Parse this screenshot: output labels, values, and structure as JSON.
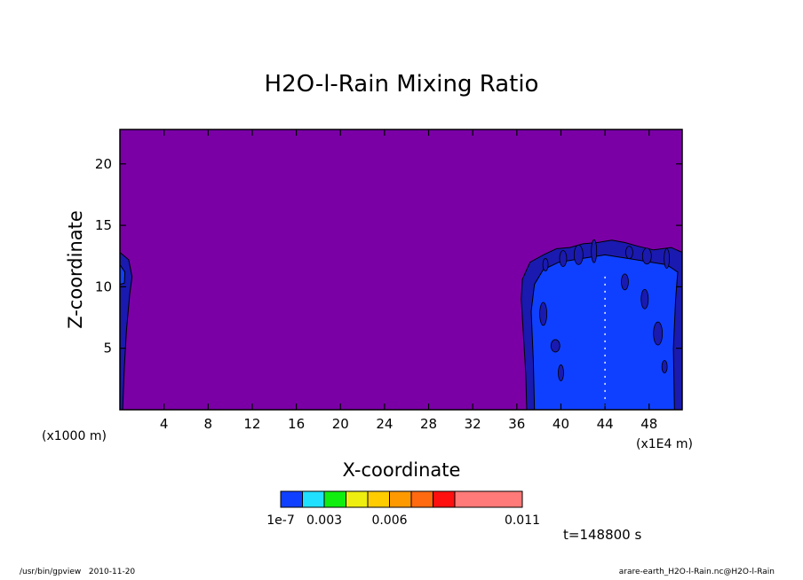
{
  "footer": {
    "left_path": "/usr/bin/gpview",
    "left_date": "2010-11-20",
    "right": "arare-earth_H2O-l-Rain.nc@H2O-l-Rain"
  },
  "time_label": "t=148800 s",
  "colors": {
    "background_fill": "#7a00a6",
    "level_blue": "#1040ff",
    "level_dark_blue": "#1a1ab0"
  },
  "chart_data": {
    "type": "heatmap",
    "title": "H2O-l-Rain Mixing Ratio",
    "xlabel": "X-coordinate",
    "ylabel": "Z-coordinate",
    "x_unit_left": "(x1000 m)",
    "x_unit_right": "(x1E4 m)",
    "xlim": [
      0,
      51
    ],
    "ylim": [
      0,
      22.8
    ],
    "x_ticks": [
      4,
      8,
      12,
      16,
      20,
      24,
      28,
      32,
      36,
      40,
      44,
      48
    ],
    "y_ticks": [
      5,
      10,
      15,
      20
    ],
    "colorbar": {
      "colors": [
        "#1040ff",
        "#20e0ff",
        "#10ee10",
        "#eeee10",
        "#ffcc00",
        "#ff9900",
        "#ff6a10",
        "#ff1010",
        "#ff7a78"
      ],
      "labels": [
        "1e-7",
        "0.003",
        "0.006",
        "0.011"
      ],
      "label_positions": [
        0,
        2,
        5,
        9
      ]
    },
    "regions": [
      {
        "name": "left-edge-cloud",
        "level": "dark",
        "outline": [
          [
            0,
            0
          ],
          [
            0,
            12.8
          ],
          [
            0.8,
            12.2
          ],
          [
            1.1,
            10.8
          ],
          [
            0.9,
            9.5
          ],
          [
            0.6,
            6.5
          ],
          [
            0.4,
            3.5
          ],
          [
            0.25,
            0
          ]
        ]
      },
      {
        "name": "left-edge-inner",
        "level": "blue",
        "outline": [
          [
            0,
            10.2
          ],
          [
            0,
            11.8
          ],
          [
            0.45,
            11.2
          ],
          [
            0.4,
            10.3
          ]
        ]
      },
      {
        "name": "right-rain-shaft",
        "level": "dark",
        "outline": [
          [
            36.9,
            0
          ],
          [
            36.8,
            3
          ],
          [
            36.6,
            6
          ],
          [
            36.4,
            9
          ],
          [
            36.5,
            10.6
          ],
          [
            37.2,
            12.0
          ],
          [
            38.4,
            12.6
          ],
          [
            39.6,
            13.1
          ],
          [
            40.8,
            13.2
          ],
          [
            42.0,
            13.5
          ],
          [
            43.3,
            13.6
          ],
          [
            44.6,
            13.8
          ],
          [
            45.8,
            13.6
          ],
          [
            47.0,
            13.3
          ],
          [
            48.4,
            13.0
          ],
          [
            50.0,
            13.2
          ],
          [
            51,
            12.8
          ],
          [
            51,
            0
          ]
        ]
      },
      {
        "name": "right-rain-core",
        "level": "blue",
        "outline": [
          [
            37.6,
            0
          ],
          [
            37.5,
            4
          ],
          [
            37.3,
            8
          ],
          [
            37.6,
            10.2
          ],
          [
            38.4,
            11.4
          ],
          [
            39.8,
            12.0
          ],
          [
            41.2,
            12.2
          ],
          [
            42.6,
            12.4
          ],
          [
            44.0,
            12.6
          ],
          [
            45.4,
            12.4
          ],
          [
            46.8,
            12.2
          ],
          [
            48.2,
            12.0
          ],
          [
            49.6,
            11.8
          ],
          [
            50.6,
            11.2
          ],
          [
            50.4,
            9
          ],
          [
            50.2,
            5
          ],
          [
            50.3,
            0
          ]
        ]
      }
    ]
  }
}
